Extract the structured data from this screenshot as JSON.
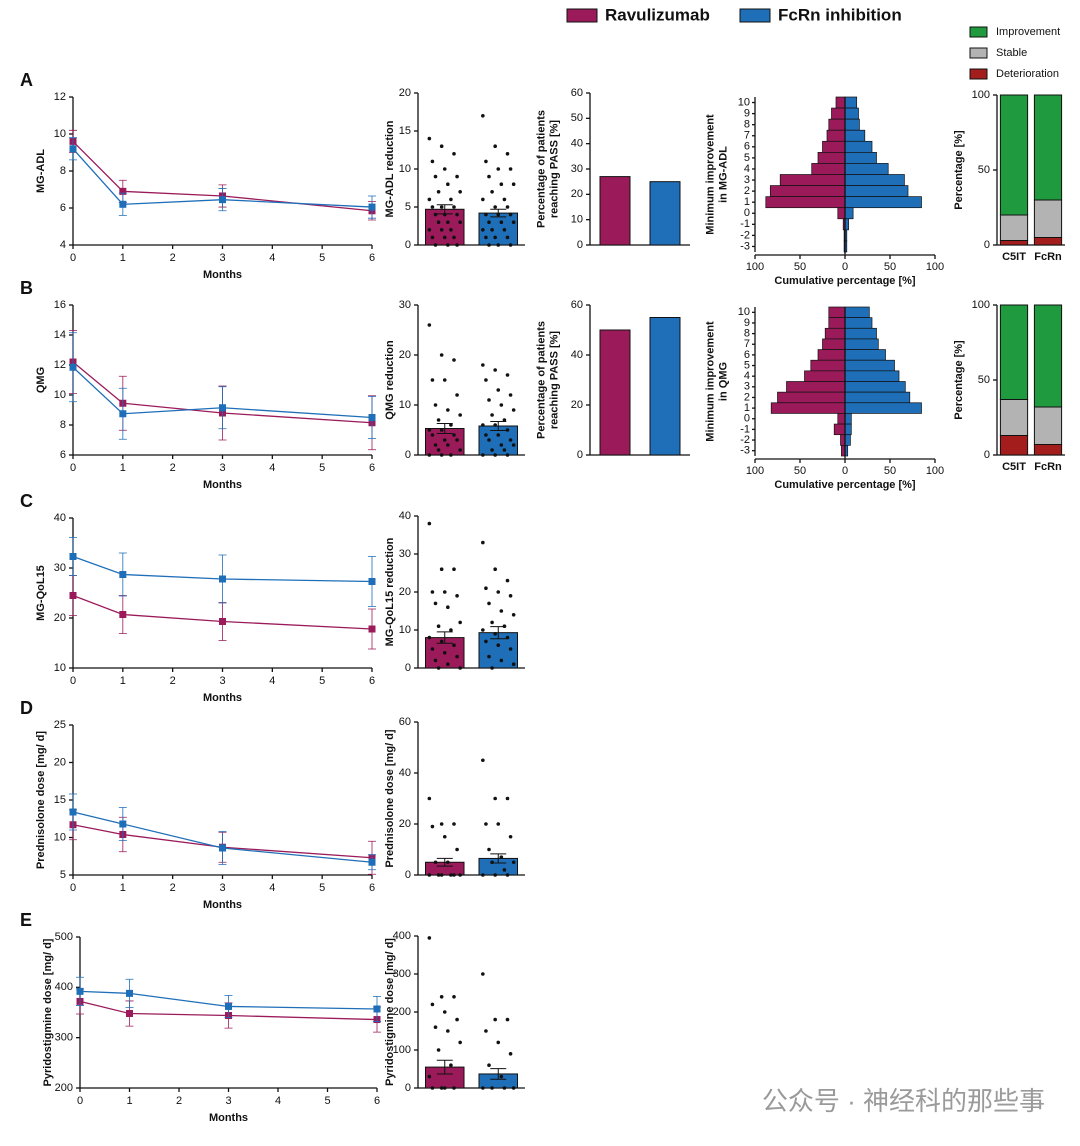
{
  "legend": [
    {
      "name": "Ravulizumab",
      "color": "#9b1b5a"
    },
    {
      "name": "FcRn inhibition",
      "color": "#1f6fb8"
    }
  ],
  "watermark": "公众号 · 神经科的那些事",
  "chart_data": [
    {
      "type": "line",
      "panel": "A",
      "ylabel": "MG-ADL",
      "xlabel": "Months",
      "x": [
        0,
        1,
        3,
        6
      ],
      "xlim": [
        0,
        6
      ],
      "xticks": [
        0,
        1,
        2,
        3,
        4,
        5,
        6
      ],
      "ylim": [
        4,
        12
      ],
      "yticks": [
        4,
        6,
        8,
        10,
        12
      ],
      "series": [
        {
          "name": "Ravulizumab",
          "color": "#9b1b5a",
          "values": [
            9.6,
            6.9,
            6.65,
            5.85
          ],
          "errors": [
            0.6,
            0.6,
            0.6,
            0.5
          ]
        },
        {
          "name": "FcRn inhibition",
          "color": "#1f6fb8",
          "values": [
            9.2,
            6.2,
            6.45,
            6.05
          ],
          "errors": [
            0.6,
            0.6,
            0.6,
            0.6
          ]
        }
      ]
    },
    {
      "type": "scatterbar",
      "ylabel": "MG-ADL reduction",
      "ylim": [
        0,
        20
      ],
      "yticks": [
        0,
        5,
        10,
        15,
        20
      ],
      "series": [
        {
          "name": "Ravulizumab",
          "color": "#9b1b5a",
          "values": [
            4.7
          ],
          "errors": [
            0.6
          ],
          "points": [
            14,
            13,
            12,
            11,
            10,
            9,
            9,
            8,
            7,
            7,
            6,
            6,
            5,
            5,
            5,
            4,
            4,
            4,
            3,
            3,
            3,
            2,
            2,
            2,
            1,
            1,
            1,
            0,
            0,
            0
          ]
        },
        {
          "name": "FcRn inhibition",
          "color": "#1f6fb8",
          "values": [
            4.2
          ],
          "errors": [
            0.5
          ],
          "points": [
            17,
            13,
            12,
            11,
            10,
            10,
            9,
            8,
            8,
            7,
            6,
            6,
            5,
            5,
            4,
            4,
            4,
            3,
            3,
            3,
            2,
            2,
            2,
            1,
            1,
            1,
            0,
            0,
            0
          ]
        }
      ]
    },
    {
      "type": "bar",
      "ylabel": [
        "Percentage of patients",
        "reaching PASS [%]"
      ],
      "ylim": [
        0,
        60
      ],
      "yticks": [
        0,
        10,
        20,
        30,
        40,
        50,
        60
      ],
      "values": [
        27,
        25
      ],
      "colors": [
        "#9b1b5a",
        "#1f6fb8"
      ]
    },
    {
      "type": "pyramid",
      "ylabel": [
        "Minimum improvement",
        "in MG-ADL"
      ],
      "xlabel": "Cumulative percentage [%]",
      "categories": [
        "10",
        "9",
        "8",
        "7",
        "6",
        "5",
        "4",
        "3",
        "2",
        "1",
        "0",
        "-1",
        "-2",
        "-3"
      ],
      "xlim": [
        -100,
        100
      ],
      "xticks": [
        {
          "value": -100,
          "label": "100"
        },
        {
          "value": -50,
          "label": "50"
        },
        0,
        50,
        100
      ],
      "series": [
        {
          "name": "Ravulizumab",
          "color": "#9b1b5a",
          "values": [
            10,
            15,
            18,
            20,
            25,
            30,
            37,
            72,
            83,
            88,
            8,
            2,
            1,
            1
          ]
        },
        {
          "name": "FcRn inhibition",
          "color": "#1f6fb8",
          "values": [
            13,
            15,
            16,
            22,
            30,
            35,
            48,
            66,
            70,
            85,
            9,
            4,
            2,
            2
          ]
        }
      ]
    },
    {
      "type": "stacked",
      "ylabel": "Percentage [%]",
      "categories": [
        "C5IT",
        "FcRn"
      ],
      "ylim": [
        0,
        100
      ],
      "yticks": [
        0,
        50,
        100
      ],
      "series": [
        {
          "name": "Deterioration",
          "color": "#a31d1d",
          "values": [
            3,
            5
          ]
        },
        {
          "name": "Stable",
          "color": "#b3b3b3",
          "values": [
            17,
            25
          ]
        },
        {
          "name": "Improvement",
          "color": "#1f9a3e",
          "values": [
            80,
            70
          ]
        }
      ]
    },
    {
      "type": "line",
      "panel": "B",
      "ylabel": "QMG",
      "xlabel": "Months",
      "x": [
        0,
        1,
        3,
        6
      ],
      "xlim": [
        0,
        6
      ],
      "xticks": [
        0,
        1,
        2,
        3,
        4,
        5,
        6
      ],
      "ylim": [
        6,
        16
      ],
      "yticks": [
        6,
        8,
        10,
        12,
        14,
        16
      ],
      "series": [
        {
          "name": "Ravulizumab",
          "color": "#9b1b5a",
          "values": [
            12.2,
            9.45,
            8.8,
            8.15
          ],
          "errors": [
            2.1,
            1.8,
            1.8,
            1.8
          ]
        },
        {
          "name": "FcRn inhibition",
          "color": "#1f6fb8",
          "values": [
            11.85,
            8.75,
            9.15,
            8.5
          ],
          "errors": [
            2.3,
            1.7,
            1.4,
            1.4
          ]
        }
      ]
    },
    {
      "type": "scatterbar",
      "ylabel": "QMG reduction",
      "ylim": [
        0,
        30
      ],
      "yticks": [
        0,
        10,
        20,
        30
      ],
      "series": [
        {
          "name": "Ravulizumab",
          "color": "#9b1b5a",
          "values": [
            5.3
          ],
          "errors": [
            1.0
          ],
          "points": [
            26,
            20,
            19,
            15,
            15,
            12,
            10,
            9,
            8,
            7,
            6,
            5,
            5,
            4,
            4,
            3,
            3,
            2,
            2,
            1,
            1,
            0,
            0,
            0
          ]
        },
        {
          "name": "FcRn inhibition",
          "color": "#1f6fb8",
          "values": [
            5.8
          ],
          "errors": [
            0.9
          ],
          "points": [
            18,
            17,
            16,
            15,
            13,
            12,
            11,
            10,
            9,
            8,
            7,
            6,
            6,
            5,
            4,
            4,
            3,
            3,
            2,
            2,
            1,
            1,
            0,
            0,
            0
          ]
        }
      ]
    },
    {
      "type": "bar",
      "ylabel": [
        "Percentage of patients",
        "reaching PASS [%]"
      ],
      "ylim": [
        0,
        60
      ],
      "yticks": [
        0,
        20,
        40,
        60
      ],
      "values": [
        50,
        55
      ],
      "colors": [
        "#9b1b5a",
        "#1f6fb8"
      ]
    },
    {
      "type": "pyramid",
      "ylabel": [
        "Minimum improvement",
        "in QMG"
      ],
      "xlabel": "Cumulative percentage [%]",
      "categories": [
        "10",
        "9",
        "8",
        "7",
        "6",
        "5",
        "4",
        "3",
        "2",
        "1",
        "0",
        "-1",
        "-2",
        "-3"
      ],
      "xlim": [
        -100,
        100
      ],
      "xticks": [
        {
          "value": -100,
          "label": "100"
        },
        {
          "value": -50,
          "label": "50"
        },
        0,
        50,
        100
      ],
      "series": [
        {
          "name": "Ravulizumab",
          "color": "#9b1b5a",
          "values": [
            18,
            18,
            22,
            25,
            30,
            38,
            45,
            65,
            75,
            82,
            8,
            12,
            5,
            4
          ]
        },
        {
          "name": "FcRn inhibition",
          "color": "#1f6fb8",
          "values": [
            27,
            30,
            35,
            37,
            45,
            55,
            60,
            67,
            72,
            85,
            7,
            7,
            6,
            3
          ]
        }
      ]
    },
    {
      "type": "stacked",
      "ylabel": "Percentage [%]",
      "categories": [
        "C5IT",
        "FcRn"
      ],
      "ylim": [
        0,
        100
      ],
      "yticks": [
        0,
        50,
        100
      ],
      "series": [
        {
          "name": "Deterioration",
          "color": "#a31d1d",
          "values": [
            13,
            7
          ]
        },
        {
          "name": "Stable",
          "color": "#b3b3b3",
          "values": [
            24,
            25
          ]
        },
        {
          "name": "Improvement",
          "color": "#1f9a3e",
          "values": [
            63,
            68
          ]
        }
      ]
    },
    {
      "type": "line",
      "panel": "C",
      "ylabel": "MG-QoL15",
      "xlabel": "Months",
      "x": [
        0,
        1,
        3,
        6
      ],
      "xlim": [
        0,
        6
      ],
      "xticks": [
        0,
        1,
        2,
        3,
        4,
        5,
        6
      ],
      "ylim": [
        10,
        40
      ],
      "yticks": [
        10,
        20,
        30,
        40
      ],
      "series": [
        {
          "name": "Ravulizumab",
          "color": "#9b1b5a",
          "values": [
            24.5,
            20.7,
            19.3,
            17.8
          ],
          "errors": [
            4,
            3.8,
            3.8,
            4
          ]
        },
        {
          "name": "FcRn inhibition",
          "color": "#1f6fb8",
          "values": [
            32.3,
            28.7,
            27.8,
            27.3
          ],
          "errors": [
            3.8,
            4.3,
            4.8,
            5
          ]
        }
      ]
    },
    {
      "type": "scatterbar",
      "ylabel": "MG-QoL15 reduction",
      "ylim": [
        0,
        40
      ],
      "yticks": [
        0,
        10,
        20,
        30,
        40
      ],
      "series": [
        {
          "name": "Ravulizumab",
          "color": "#9b1b5a",
          "values": [
            8
          ],
          "errors": [
            1.5
          ],
          "points": [
            38,
            26,
            26,
            20,
            20,
            19,
            17,
            16,
            12,
            11,
            10,
            8,
            7,
            6,
            5,
            4,
            3,
            2,
            1,
            0,
            0
          ]
        },
        {
          "name": "FcRn inhibition",
          "color": "#1f6fb8",
          "values": [
            9.3
          ],
          "errors": [
            1.6
          ],
          "points": [
            33,
            26,
            23,
            21,
            20,
            19,
            17,
            15,
            14,
            12,
            11,
            10,
            9,
            8,
            7,
            6,
            5,
            3,
            2,
            1,
            0
          ]
        }
      ]
    },
    {
      "type": "line",
      "panel": "D",
      "ylabel": "Prednisolone dose [mg/ d]",
      "xlabel": "Months",
      "x": [
        0,
        1,
        3,
        6
      ],
      "xlim": [
        0,
        6
      ],
      "xticks": [
        0,
        1,
        2,
        3,
        4,
        5,
        6
      ],
      "ylim": [
        5,
        25
      ],
      "yticks": [
        5,
        10,
        15,
        20,
        25
      ],
      "series": [
        {
          "name": "Ravulizumab",
          "color": "#9b1b5a",
          "values": [
            11.7,
            10.4,
            8.7,
            7.3
          ],
          "errors": [
            2,
            2.3,
            2,
            2.2
          ]
        },
        {
          "name": "FcRn inhibition",
          "color": "#1f6fb8",
          "values": [
            13.4,
            11.8,
            8.6,
            6.7
          ],
          "errors": [
            2.4,
            2.2,
            2.2,
            1
          ]
        }
      ]
    },
    {
      "type": "scatterbar",
      "ylabel": "Prednisolone dose [mg/ d]",
      "ylim": [
        0,
        60
      ],
      "yticks": [
        0,
        20,
        40,
        60
      ],
      "series": [
        {
          "name": "Ravulizumab",
          "color": "#9b1b5a",
          "values": [
            5
          ],
          "errors": [
            1.5
          ],
          "points": [
            30,
            20,
            20,
            19,
            15,
            10,
            5,
            5,
            0,
            0,
            0,
            0,
            0,
            0
          ]
        },
        {
          "name": "FcRn inhibition",
          "color": "#1f6fb8",
          "values": [
            6.5
          ],
          "errors": [
            1.8
          ],
          "points": [
            45,
            30,
            30,
            20,
            20,
            15,
            10,
            7,
            5,
            5,
            2,
            0,
            0,
            0
          ]
        }
      ]
    },
    {
      "type": "line",
      "panel": "E",
      "ylabel": "Pyridostigmine dose [mg/ d]",
      "xlabel": "Months",
      "x": [
        0,
        1,
        3,
        6
      ],
      "xlim": [
        0,
        6
      ],
      "xticks": [
        0,
        1,
        2,
        3,
        4,
        5,
        6
      ],
      "ylim": [
        200,
        500
      ],
      "yticks": [
        200,
        300,
        400,
        500
      ],
      "series": [
        {
          "name": "Ravulizumab",
          "color": "#9b1b5a",
          "values": [
            372,
            348,
            344,
            336
          ],
          "errors": [
            25,
            25,
            25,
            25
          ]
        },
        {
          "name": "FcRn inhibition",
          "color": "#1f6fb8",
          "values": [
            392,
            388,
            362,
            357
          ],
          "errors": [
            28,
            28,
            22,
            25
          ]
        }
      ]
    },
    {
      "type": "scatterbar",
      "ylabel": "Pyridostigmine dose [mg/ d]",
      "ylim": [
        0,
        400
      ],
      "yticks": [
        0,
        100,
        200,
        300,
        400
      ],
      "series": [
        {
          "name": "Ravulizumab",
          "color": "#9b1b5a",
          "values": [
            55
          ],
          "errors": [
            18
          ],
          "points": [
            395,
            240,
            240,
            220,
            200,
            180,
            160,
            150,
            120,
            100,
            60,
            30,
            0,
            0,
            0,
            0
          ]
        },
        {
          "name": "FcRn inhibition",
          "color": "#1f6fb8",
          "values": [
            37
          ],
          "errors": [
            14
          ],
          "points": [
            300,
            180,
            180,
            150,
            120,
            90,
            60,
            30,
            0,
            0,
            0,
            0
          ]
        }
      ]
    }
  ]
}
